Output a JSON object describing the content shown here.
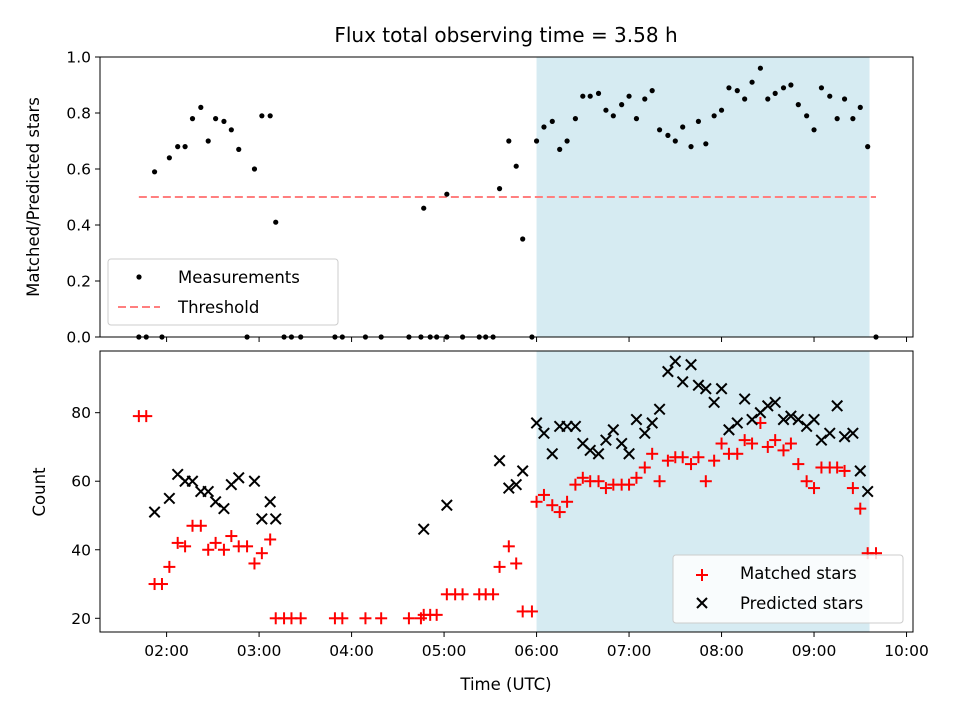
{
  "chart_data": [
    {
      "type": "scatter",
      "title": "Flux total observing time = 3.58 h",
      "ylabel": "Matched/Predicted stars",
      "ylim": [
        0,
        1.0
      ],
      "yticks": [
        "0.0",
        "0.2",
        "0.4",
        "0.6",
        "0.8",
        "1.0"
      ],
      "xlim_hours": [
        1.28,
        10.07
      ],
      "shaded_region_hours": [
        6.0,
        9.6
      ],
      "shade_color": "#add8e6",
      "threshold": 0.5,
      "threshold_color": "#ff7f7f",
      "legend": [
        "Measurements",
        "Threshold"
      ],
      "legend_position": "lower left",
      "series": [
        {
          "name": "Measurements",
          "color": "#000000",
          "points": [
            [
              1.7,
              0
            ],
            [
              1.78,
              0
            ],
            [
              1.95,
              0
            ],
            [
              1.87,
              0.59
            ],
            [
              2.03,
              0.64
            ],
            [
              2.12,
              0.68
            ],
            [
              2.2,
              0.68
            ],
            [
              2.28,
              0.78
            ],
            [
              2.37,
              0.82
            ],
            [
              2.45,
              0.7
            ],
            [
              2.53,
              0.78
            ],
            [
              2.62,
              0.77
            ],
            [
              2.7,
              0.74
            ],
            [
              2.78,
              0.67
            ],
            [
              2.87,
              0.0
            ],
            [
              2.95,
              0.6
            ],
            [
              3.03,
              0.79
            ],
            [
              3.12,
              0.79
            ],
            [
              3.18,
              0.41
            ],
            [
              3.27,
              0
            ],
            [
              3.35,
              0
            ],
            [
              3.45,
              0
            ],
            [
              3.82,
              0
            ],
            [
              3.9,
              0
            ],
            [
              4.15,
              0
            ],
            [
              4.32,
              0
            ],
            [
              4.62,
              0
            ],
            [
              4.75,
              0
            ],
            [
              4.78,
              0.46
            ],
            [
              4.85,
              0
            ],
            [
              4.92,
              0
            ],
            [
              5.03,
              0
            ],
            [
              5.03,
              0.51
            ],
            [
              5.2,
              0
            ],
            [
              5.38,
              0
            ],
            [
              5.45,
              0
            ],
            [
              5.53,
              0
            ],
            [
              5.6,
              0.53
            ],
            [
              5.7,
              0.7
            ],
            [
              5.78,
              0.61
            ],
            [
              5.85,
              0.35
            ],
            [
              5.95,
              0
            ],
            [
              6.0,
              0.7
            ],
            [
              6.08,
              0.75
            ],
            [
              6.17,
              0.77
            ],
            [
              6.25,
              0.67
            ],
            [
              6.33,
              0.7
            ],
            [
              6.42,
              0.78
            ],
            [
              6.5,
              0.86
            ],
            [
              6.58,
              0.86
            ],
            [
              6.67,
              0.87
            ],
            [
              6.75,
              0.81
            ],
            [
              6.83,
              0.79
            ],
            [
              6.92,
              0.83
            ],
            [
              7.0,
              0.86
            ],
            [
              7.08,
              0.78
            ],
            [
              7.17,
              0.85
            ],
            [
              7.25,
              0.88
            ],
            [
              7.33,
              0.74
            ],
            [
              7.42,
              0.72
            ],
            [
              7.5,
              0.7
            ],
            [
              7.58,
              0.75
            ],
            [
              7.67,
              0.68
            ],
            [
              7.75,
              0.77
            ],
            [
              7.83,
              0.69
            ],
            [
              7.92,
              0.79
            ],
            [
              8.0,
              0.81
            ],
            [
              8.08,
              0.89
            ],
            [
              8.17,
              0.88
            ],
            [
              8.25,
              0.85
            ],
            [
              8.33,
              0.91
            ],
            [
              8.42,
              0.96
            ],
            [
              8.5,
              0.85
            ],
            [
              8.58,
              0.87
            ],
            [
              8.67,
              0.89
            ],
            [
              8.75,
              0.9
            ],
            [
              8.83,
              0.83
            ],
            [
              8.92,
              0.79
            ],
            [
              9.0,
              0.74
            ],
            [
              9.08,
              0.89
            ],
            [
              9.17,
              0.86
            ],
            [
              9.25,
              0.78
            ],
            [
              9.33,
              0.85
            ],
            [
              9.42,
              0.78
            ],
            [
              9.5,
              0.82
            ],
            [
              9.58,
              0.68
            ],
            [
              9.67,
              0
            ]
          ]
        }
      ]
    },
    {
      "type": "scatter",
      "xlabel": "Time (UTC)",
      "ylabel": "Count",
      "ylim": [
        16,
        98
      ],
      "yticks": [
        "20",
        "40",
        "60",
        "80"
      ],
      "xlim_hours": [
        1.28,
        10.07
      ],
      "xticks": [
        "02:00",
        "03:00",
        "04:00",
        "05:00",
        "06:00",
        "07:00",
        "08:00",
        "09:00",
        "10:00"
      ],
      "shaded_region_hours": [
        6.0,
        9.6
      ],
      "legend": [
        "Matched stars",
        "Predicted stars"
      ],
      "legend_position": "lower right",
      "series": [
        {
          "name": "Matched stars",
          "marker": "+",
          "color": "#ff0000",
          "points": [
            [
              1.7,
              79
            ],
            [
              1.78,
              79
            ],
            [
              1.87,
              30
            ],
            [
              1.95,
              30
            ],
            [
              2.03,
              35
            ],
            [
              2.12,
              42
            ],
            [
              2.2,
              41
            ],
            [
              2.28,
              47
            ],
            [
              2.37,
              47
            ],
            [
              2.45,
              40
            ],
            [
              2.53,
              42
            ],
            [
              2.62,
              40
            ],
            [
              2.7,
              44
            ],
            [
              2.78,
              41
            ],
            [
              2.87,
              41
            ],
            [
              2.95,
              36
            ],
            [
              3.03,
              39
            ],
            [
              3.12,
              43
            ],
            [
              3.18,
              20
            ],
            [
              3.27,
              20
            ],
            [
              3.35,
              20
            ],
            [
              3.45,
              20
            ],
            [
              3.82,
              20
            ],
            [
              3.9,
              20
            ],
            [
              4.15,
              20
            ],
            [
              4.32,
              20
            ],
            [
              4.62,
              20
            ],
            [
              4.75,
              20
            ],
            [
              4.78,
              21
            ],
            [
              4.85,
              21
            ],
            [
              4.92,
              21
            ],
            [
              5.03,
              27
            ],
            [
              5.12,
              27
            ],
            [
              5.2,
              27
            ],
            [
              5.38,
              27
            ],
            [
              5.45,
              27
            ],
            [
              5.53,
              27
            ],
            [
              5.6,
              35
            ],
            [
              5.7,
              41
            ],
            [
              5.78,
              36
            ],
            [
              5.85,
              22
            ],
            [
              5.95,
              22
            ],
            [
              6.0,
              54
            ],
            [
              6.08,
              56
            ],
            [
              6.17,
              53
            ],
            [
              6.25,
              51
            ],
            [
              6.33,
              54
            ],
            [
              6.42,
              59
            ],
            [
              6.5,
              61
            ],
            [
              6.58,
              60
            ],
            [
              6.67,
              60
            ],
            [
              6.75,
              58
            ],
            [
              6.83,
              59
            ],
            [
              6.92,
              59
            ],
            [
              7.0,
              59
            ],
            [
              7.08,
              61
            ],
            [
              7.17,
              64
            ],
            [
              7.25,
              68
            ],
            [
              7.33,
              60
            ],
            [
              7.42,
              66
            ],
            [
              7.5,
              67
            ],
            [
              7.58,
              67
            ],
            [
              7.67,
              65
            ],
            [
              7.75,
              67
            ],
            [
              7.83,
              60
            ],
            [
              7.92,
              66
            ],
            [
              8.0,
              71
            ],
            [
              8.08,
              68
            ],
            [
              8.17,
              68
            ],
            [
              8.25,
              72
            ],
            [
              8.33,
              71
            ],
            [
              8.42,
              77
            ],
            [
              8.5,
              70
            ],
            [
              8.58,
              72
            ],
            [
              8.67,
              69
            ],
            [
              8.75,
              71
            ],
            [
              8.83,
              65
            ],
            [
              8.92,
              60
            ],
            [
              9.0,
              58
            ],
            [
              9.08,
              64
            ],
            [
              9.17,
              64
            ],
            [
              9.25,
              64
            ],
            [
              9.33,
              63
            ],
            [
              9.42,
              58
            ],
            [
              9.5,
              52
            ],
            [
              9.58,
              39
            ],
            [
              9.67,
              39
            ]
          ]
        },
        {
          "name": "Predicted stars",
          "marker": "x",
          "color": "#000000",
          "points": [
            [
              1.87,
              51
            ],
            [
              2.03,
              55
            ],
            [
              2.12,
              62
            ],
            [
              2.2,
              60
            ],
            [
              2.28,
              60
            ],
            [
              2.37,
              57
            ],
            [
              2.45,
              57
            ],
            [
              2.53,
              54
            ],
            [
              2.62,
              52
            ],
            [
              2.7,
              59
            ],
            [
              2.78,
              61
            ],
            [
              2.95,
              60
            ],
            [
              3.03,
              49
            ],
            [
              3.12,
              54
            ],
            [
              3.18,
              49
            ],
            [
              4.78,
              46
            ],
            [
              5.03,
              53
            ],
            [
              5.6,
              66
            ],
            [
              5.7,
              58
            ],
            [
              5.78,
              59
            ],
            [
              5.85,
              63
            ],
            [
              6.0,
              77
            ],
            [
              6.08,
              74
            ],
            [
              6.17,
              68
            ],
            [
              6.25,
              76
            ],
            [
              6.33,
              76
            ],
            [
              6.42,
              76
            ],
            [
              6.5,
              71
            ],
            [
              6.58,
              69
            ],
            [
              6.67,
              68
            ],
            [
              6.75,
              72
            ],
            [
              6.83,
              75
            ],
            [
              6.92,
              71
            ],
            [
              7.0,
              68
            ],
            [
              7.08,
              78
            ],
            [
              7.17,
              74
            ],
            [
              7.25,
              77
            ],
            [
              7.33,
              81
            ],
            [
              7.42,
              92
            ],
            [
              7.5,
              95
            ],
            [
              7.58,
              89
            ],
            [
              7.67,
              94
            ],
            [
              7.75,
              88
            ],
            [
              7.83,
              87
            ],
            [
              7.92,
              83
            ],
            [
              8.0,
              87
            ],
            [
              8.08,
              75
            ],
            [
              8.17,
              77
            ],
            [
              8.25,
              84
            ],
            [
              8.33,
              78
            ],
            [
              8.42,
              80
            ],
            [
              8.5,
              82
            ],
            [
              8.58,
              83
            ],
            [
              8.67,
              78
            ],
            [
              8.75,
              79
            ],
            [
              8.83,
              78
            ],
            [
              8.92,
              76
            ],
            [
              9.0,
              78
            ],
            [
              9.08,
              72
            ],
            [
              9.17,
              74
            ],
            [
              9.25,
              82
            ],
            [
              9.33,
              73
            ],
            [
              9.42,
              74
            ],
            [
              9.5,
              63
            ],
            [
              9.58,
              57
            ]
          ]
        }
      ]
    }
  ]
}
